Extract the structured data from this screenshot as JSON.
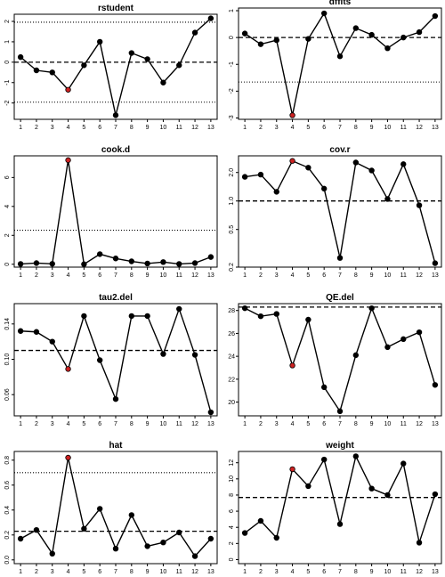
{
  "chart_data": [
    {
      "type": "line",
      "title": "rstudent",
      "x": [
        1,
        2,
        3,
        4,
        5,
        6,
        7,
        8,
        9,
        10,
        11,
        12,
        13
      ],
      "y": [
        0.25,
        -0.4,
        -0.5,
        -1.35,
        -0.15,
        1.0,
        -2.6,
        0.45,
        0.15,
        -1.0,
        -0.15,
        1.45,
        2.15
      ],
      "highlight_index": 3,
      "ylim": [
        -2.8,
        2.35
      ],
      "yticks": [
        -2,
        -1,
        0,
        1,
        2
      ],
      "ytick_labels": [
        "-2",
        "-1",
        "0",
        "1",
        "2"
      ],
      "ytick_rotated": true,
      "reference_lines": [
        {
          "value": 0,
          "style": "dashed"
        },
        {
          "value": 1.96,
          "style": "dotted"
        },
        {
          "value": -1.96,
          "style": "dotted"
        }
      ]
    },
    {
      "type": "line",
      "title": "dffits",
      "x": [
        1,
        2,
        3,
        4,
        5,
        6,
        7,
        8,
        9,
        10,
        11,
        12,
        13
      ],
      "y": [
        0.15,
        -0.25,
        -0.1,
        -2.9,
        -0.05,
        0.9,
        -0.7,
        0.35,
        0.1,
        -0.4,
        0.0,
        0.2,
        0.8
      ],
      "highlight_index": 3,
      "ylim": [
        -3.05,
        1.1
      ],
      "yticks": [
        -3,
        -2,
        -1,
        0,
        1
      ],
      "ytick_labels": [
        "-3",
        "-2",
        "-1",
        "0",
        "1"
      ],
      "ytick_rotated": true,
      "reference_lines": [
        {
          "value": 0,
          "style": "dashed"
        },
        {
          "value": -1.66,
          "style": "dotted"
        }
      ]
    },
    {
      "type": "line",
      "title": "cook.d",
      "x": [
        1,
        2,
        3,
        4,
        5,
        6,
        7,
        8,
        9,
        10,
        11,
        12,
        13
      ],
      "y": [
        0.02,
        0.08,
        0.03,
        7.2,
        0.0,
        0.7,
        0.4,
        0.2,
        0.05,
        0.15,
        0.02,
        0.08,
        0.5
      ],
      "highlight_index": 3,
      "ylim": [
        -0.2,
        7.5
      ],
      "yticks": [
        0,
        2,
        4,
        6
      ],
      "ytick_labels": [
        "0",
        "2",
        "4",
        "6"
      ],
      "ytick_rotated": true,
      "reference_lines": [
        {
          "value": 2.35,
          "style": "dotted"
        }
      ]
    },
    {
      "type": "line",
      "title": "cov.r",
      "scale": "log",
      "x": [
        1,
        2,
        3,
        4,
        5,
        6,
        7,
        8,
        9,
        10,
        11,
        12,
        13
      ],
      "y": [
        1.8,
        1.9,
        1.25,
        2.65,
        2.25,
        1.35,
        0.25,
        2.55,
        2.1,
        1.05,
        2.45,
        0.9,
        0.22
      ],
      "highlight_index": 3,
      "ylim": [
        0.2,
        3.0
      ],
      "yticks": [
        0.2,
        0.5,
        1.0,
        2.0
      ],
      "ytick_labels": [
        "0.2",
        "0.5",
        "1.0",
        "2.0"
      ],
      "ytick_rotated": true,
      "reference_lines": [
        {
          "value": 1,
          "style": "dashed"
        }
      ]
    },
    {
      "type": "line",
      "title": "tau2.del",
      "x": [
        1,
        2,
        3,
        4,
        5,
        6,
        7,
        8,
        9,
        10,
        11,
        12,
        13
      ],
      "y": [
        0.132,
        0.131,
        0.12,
        0.089,
        0.149,
        0.099,
        0.055,
        0.149,
        0.149,
        0.106,
        0.157,
        0.105,
        0.04
      ],
      "highlight_index": 3,
      "ylim": [
        0.036,
        0.163
      ],
      "yticks": [
        0.06,
        0.1,
        0.14
      ],
      "ytick_labels": [
        "0.06",
        "0.10",
        "0.14"
      ],
      "ytick_rotated": true,
      "reference_lines": [
        {
          "value": 0.11,
          "style": "dashed"
        }
      ]
    },
    {
      "type": "line",
      "title": "QE.del",
      "x": [
        1,
        2,
        3,
        4,
        5,
        6,
        7,
        8,
        9,
        10,
        11,
        12,
        13
      ],
      "y": [
        28.2,
        27.5,
        27.7,
        23.2,
        27.2,
        21.3,
        19.2,
        24.1,
        28.2,
        24.8,
        25.5,
        26.1,
        21.5
      ],
      "highlight_index": 3,
      "ylim": [
        18.8,
        28.6
      ],
      "yticks": [
        20,
        22,
        24,
        26,
        28
      ],
      "ytick_labels": [
        "20",
        "22",
        "24",
        "26",
        "28"
      ],
      "ytick_rotated": false,
      "reference_lines": [
        {
          "value": 28.3,
          "style": "dashed"
        }
      ]
    },
    {
      "type": "line",
      "title": "hat",
      "x": [
        1,
        2,
        3,
        4,
        5,
        6,
        7,
        8,
        9,
        10,
        11,
        12,
        13
      ],
      "y": [
        0.17,
        0.24,
        0.05,
        0.82,
        0.25,
        0.41,
        0.09,
        0.36,
        0.11,
        0.14,
        0.22,
        0.03,
        0.17
      ],
      "highlight_index": 3,
      "ylim": [
        -0.03,
        0.87
      ],
      "yticks": [
        0,
        0.2,
        0.4,
        0.6,
        0.8
      ],
      "ytick_labels": [
        "0.0",
        "0.2",
        "0.4",
        "0.6",
        "0.8"
      ],
      "ytick_rotated": true,
      "reference_lines": [
        {
          "value": 0.23,
          "style": "dashed"
        },
        {
          "value": 0.7,
          "style": "dotted"
        }
      ]
    },
    {
      "type": "line",
      "title": "weight",
      "x": [
        1,
        2,
        3,
        4,
        5,
        6,
        7,
        8,
        9,
        10,
        11,
        12,
        13
      ],
      "y": [
        3.3,
        4.8,
        2.7,
        11.2,
        9.1,
        12.4,
        4.4,
        12.8,
        8.8,
        8.0,
        11.9,
        2.1,
        8.1
      ],
      "highlight_index": 3,
      "ylim": [
        -0.5,
        13.4
      ],
      "yticks": [
        0,
        2,
        4,
        6,
        8,
        10,
        12
      ],
      "ytick_labels": [
        "0",
        "2",
        "4",
        "6",
        "8",
        "10",
        "12"
      ],
      "ytick_rotated": true,
      "reference_lines": [
        {
          "value": 7.7,
          "style": "dashed"
        }
      ]
    }
  ],
  "x_tick_labels": [
    "1",
    "2",
    "3",
    "4",
    "5",
    "6",
    "7",
    "8",
    "9",
    "10",
    "11",
    "12",
    "13"
  ],
  "colors": {
    "point": "#000000",
    "highlight": "#cc2222",
    "line": "#000000",
    "axis": "#000000"
  }
}
